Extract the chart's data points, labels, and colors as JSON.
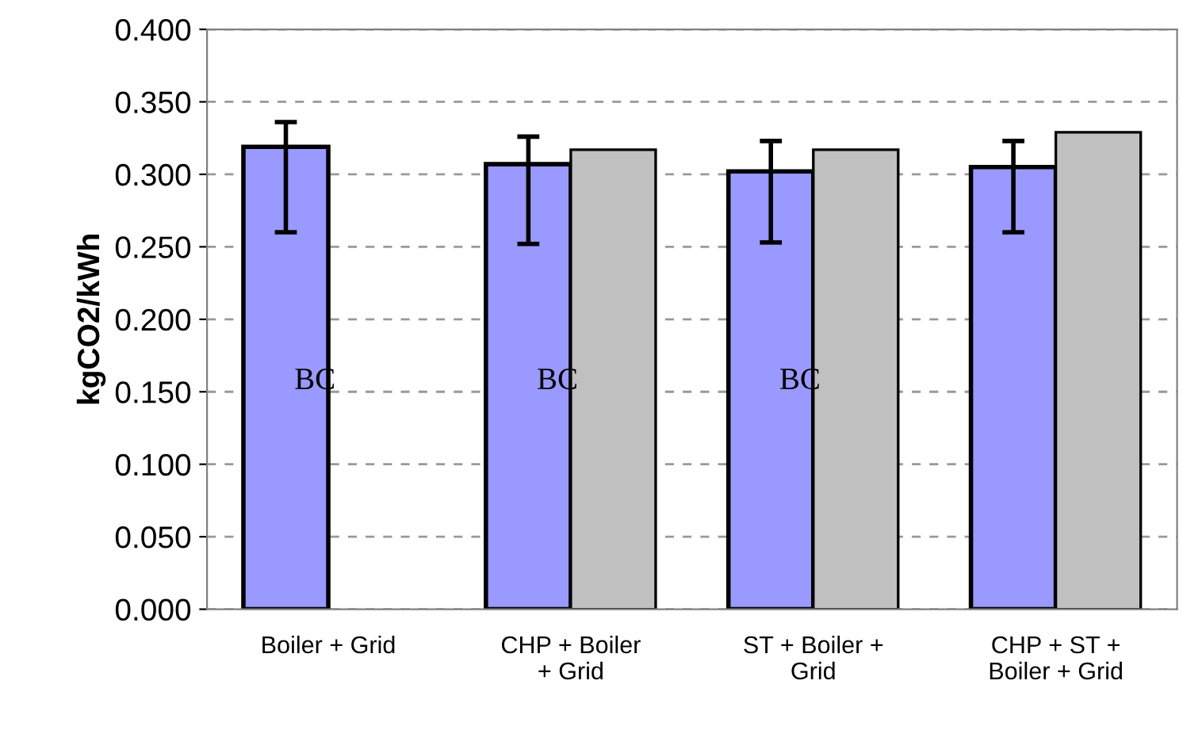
{
  "chart_data": {
    "type": "bar",
    "ylabel": "kgCO2/kWh",
    "categories": [
      "Boiler + Grid",
      "CHP + Boiler\n+ Grid",
      "ST + Boiler +\nGrid",
      "CHP + ST +\nBoiler + Grid"
    ],
    "series": [
      {
        "color": "#9999ff",
        "values": [
          0.319,
          0.307,
          0.302,
          0.305
        ],
        "errors": [
          [
            0.26,
            0.336
          ],
          [
            0.252,
            0.326
          ],
          [
            0.253,
            0.323
          ],
          [
            0.26,
            0.323
          ]
        ]
      },
      {
        "color": "#c0c0c0",
        "values": [
          null,
          0.317,
          0.317,
          0.329
        ]
      }
    ],
    "ylim": [
      0,
      0.4
    ],
    "yticks": [
      {
        "value": 0,
        "label": "0.000"
      },
      {
        "value": 0.05,
        "label": "0.050"
      },
      {
        "value": 0.1,
        "label": "0.100"
      },
      {
        "value": 0.15,
        "label": "0.150"
      },
      {
        "value": 0.2,
        "label": "0.200"
      },
      {
        "value": 0.25,
        "label": "0.250"
      },
      {
        "value": 0.3,
        "label": "0.300"
      },
      {
        "value": 0.35,
        "label": "0.350"
      },
      {
        "value": 0.4,
        "label": "0.400"
      }
    ],
    "grid": "y",
    "annotations": [
      {
        "text": "BC",
        "x": "Boiler + Grid",
        "y": 0.157
      },
      {
        "text": "BC",
        "x": "CHP + Boiler\n+ Grid",
        "y": 0.157
      },
      {
        "text": "BC",
        "x": "ST + Boiler +\nGrid",
        "y": 0.157
      }
    ]
  }
}
